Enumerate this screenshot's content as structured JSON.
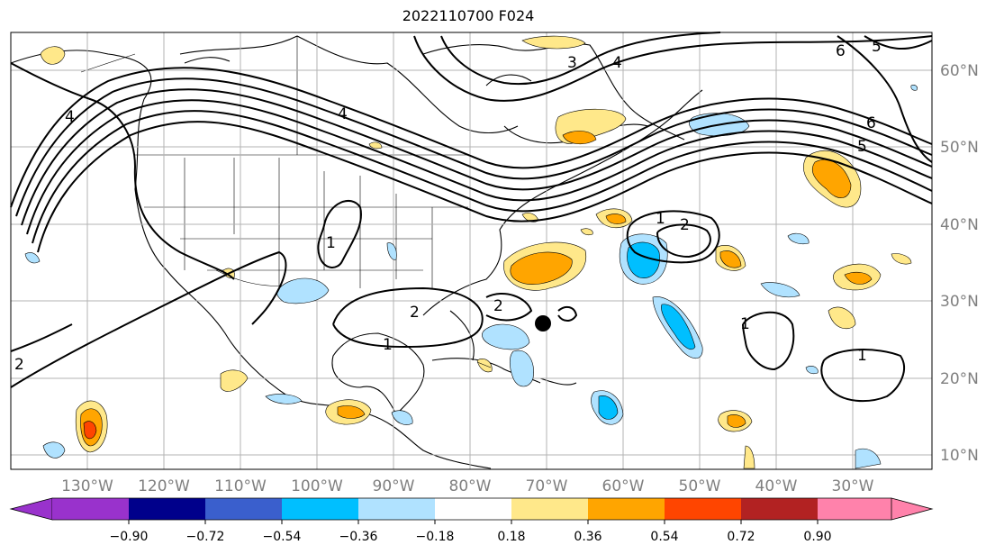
{
  "title": "2022110700 F024",
  "map": {
    "lon_labels": [
      "130°W",
      "120°W",
      "110°W",
      "100°W",
      "90°W",
      "80°W",
      "70°W",
      "60°W",
      "50°W",
      "40°W",
      "30°W"
    ],
    "lat_labels": [
      "60°N",
      "50°N",
      "40°N",
      "30°N",
      "20°N",
      "10°N"
    ],
    "contour_labels": [
      "1",
      "1",
      "1",
      "1",
      "1",
      "2",
      "2",
      "2",
      "2",
      "3",
      "4",
      "4",
      "4",
      "5",
      "5",
      "6",
      "6"
    ],
    "storm_marker": "black-dot"
  },
  "colorbar": {
    "ticks": [
      "−0.90",
      "−0.72",
      "−0.54",
      "−0.36",
      "−0.18",
      "0.18",
      "0.36",
      "0.54",
      "0.72",
      "0.90"
    ],
    "colors": [
      "#9932cc",
      "#00008b",
      "#3a5fcd",
      "#00bfff",
      "#b0e2ff",
      "#ffffff",
      "#ffe88a",
      "#ffa500",
      "#ff4500",
      "#b22222",
      "#ff82ab"
    ]
  }
}
